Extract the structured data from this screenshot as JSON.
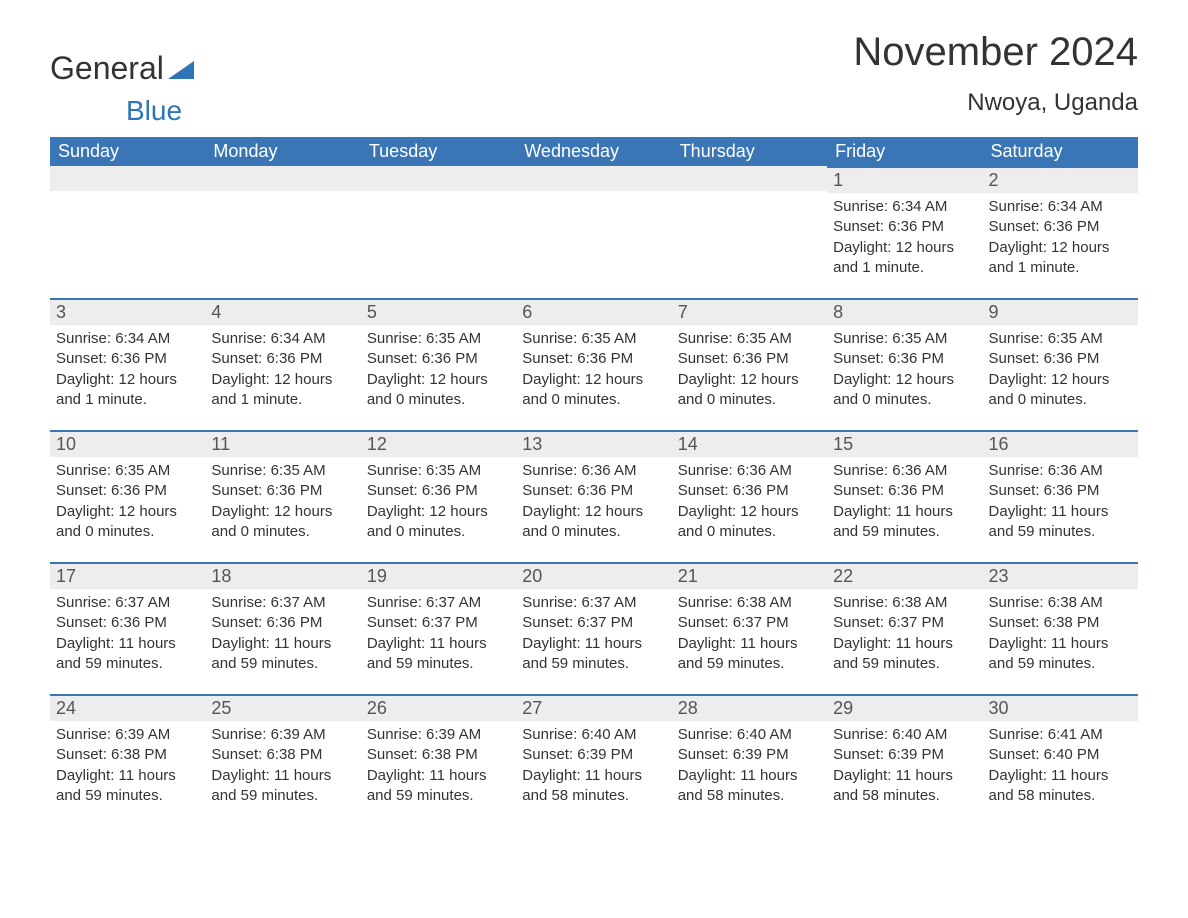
{
  "brand": {
    "word1": "General",
    "word2": "Blue"
  },
  "title": "November 2024",
  "location": "Nwoya, Uganda",
  "colors": {
    "header_bg": "#3a76b6",
    "header_text": "#ffffff",
    "daynum_bg": "#ededed",
    "row_border": "#3a76b6",
    "body_text": "#333333",
    "brand_blue": "#2e75b6"
  },
  "weekdays": [
    "Sunday",
    "Monday",
    "Tuesday",
    "Wednesday",
    "Thursday",
    "Friday",
    "Saturday"
  ],
  "weeks": [
    [
      null,
      null,
      null,
      null,
      null,
      {
        "n": "1",
        "sr": "6:34 AM",
        "ss": "6:36 PM",
        "dl": "12 hours and 1 minute."
      },
      {
        "n": "2",
        "sr": "6:34 AM",
        "ss": "6:36 PM",
        "dl": "12 hours and 1 minute."
      }
    ],
    [
      {
        "n": "3",
        "sr": "6:34 AM",
        "ss": "6:36 PM",
        "dl": "12 hours and 1 minute."
      },
      {
        "n": "4",
        "sr": "6:34 AM",
        "ss": "6:36 PM",
        "dl": "12 hours and 1 minute."
      },
      {
        "n": "5",
        "sr": "6:35 AM",
        "ss": "6:36 PM",
        "dl": "12 hours and 0 minutes."
      },
      {
        "n": "6",
        "sr": "6:35 AM",
        "ss": "6:36 PM",
        "dl": "12 hours and 0 minutes."
      },
      {
        "n": "7",
        "sr": "6:35 AM",
        "ss": "6:36 PM",
        "dl": "12 hours and 0 minutes."
      },
      {
        "n": "8",
        "sr": "6:35 AM",
        "ss": "6:36 PM",
        "dl": "12 hours and 0 minutes."
      },
      {
        "n": "9",
        "sr": "6:35 AM",
        "ss": "6:36 PM",
        "dl": "12 hours and 0 minutes."
      }
    ],
    [
      {
        "n": "10",
        "sr": "6:35 AM",
        "ss": "6:36 PM",
        "dl": "12 hours and 0 minutes."
      },
      {
        "n": "11",
        "sr": "6:35 AM",
        "ss": "6:36 PM",
        "dl": "12 hours and 0 minutes."
      },
      {
        "n": "12",
        "sr": "6:35 AM",
        "ss": "6:36 PM",
        "dl": "12 hours and 0 minutes."
      },
      {
        "n": "13",
        "sr": "6:36 AM",
        "ss": "6:36 PM",
        "dl": "12 hours and 0 minutes."
      },
      {
        "n": "14",
        "sr": "6:36 AM",
        "ss": "6:36 PM",
        "dl": "12 hours and 0 minutes."
      },
      {
        "n": "15",
        "sr": "6:36 AM",
        "ss": "6:36 PM",
        "dl": "11 hours and 59 minutes."
      },
      {
        "n": "16",
        "sr": "6:36 AM",
        "ss": "6:36 PM",
        "dl": "11 hours and 59 minutes."
      }
    ],
    [
      {
        "n": "17",
        "sr": "6:37 AM",
        "ss": "6:36 PM",
        "dl": "11 hours and 59 minutes."
      },
      {
        "n": "18",
        "sr": "6:37 AM",
        "ss": "6:36 PM",
        "dl": "11 hours and 59 minutes."
      },
      {
        "n": "19",
        "sr": "6:37 AM",
        "ss": "6:37 PM",
        "dl": "11 hours and 59 minutes."
      },
      {
        "n": "20",
        "sr": "6:37 AM",
        "ss": "6:37 PM",
        "dl": "11 hours and 59 minutes."
      },
      {
        "n": "21",
        "sr": "6:38 AM",
        "ss": "6:37 PM",
        "dl": "11 hours and 59 minutes."
      },
      {
        "n": "22",
        "sr": "6:38 AM",
        "ss": "6:37 PM",
        "dl": "11 hours and 59 minutes."
      },
      {
        "n": "23",
        "sr": "6:38 AM",
        "ss": "6:38 PM",
        "dl": "11 hours and 59 minutes."
      }
    ],
    [
      {
        "n": "24",
        "sr": "6:39 AM",
        "ss": "6:38 PM",
        "dl": "11 hours and 59 minutes."
      },
      {
        "n": "25",
        "sr": "6:39 AM",
        "ss": "6:38 PM",
        "dl": "11 hours and 59 minutes."
      },
      {
        "n": "26",
        "sr": "6:39 AM",
        "ss": "6:38 PM",
        "dl": "11 hours and 59 minutes."
      },
      {
        "n": "27",
        "sr": "6:40 AM",
        "ss": "6:39 PM",
        "dl": "11 hours and 58 minutes."
      },
      {
        "n": "28",
        "sr": "6:40 AM",
        "ss": "6:39 PM",
        "dl": "11 hours and 58 minutes."
      },
      {
        "n": "29",
        "sr": "6:40 AM",
        "ss": "6:39 PM",
        "dl": "11 hours and 58 minutes."
      },
      {
        "n": "30",
        "sr": "6:41 AM",
        "ss": "6:40 PM",
        "dl": "11 hours and 58 minutes."
      }
    ]
  ],
  "labels": {
    "sunrise": "Sunrise: ",
    "sunset": "Sunset: ",
    "daylight": "Daylight: "
  }
}
